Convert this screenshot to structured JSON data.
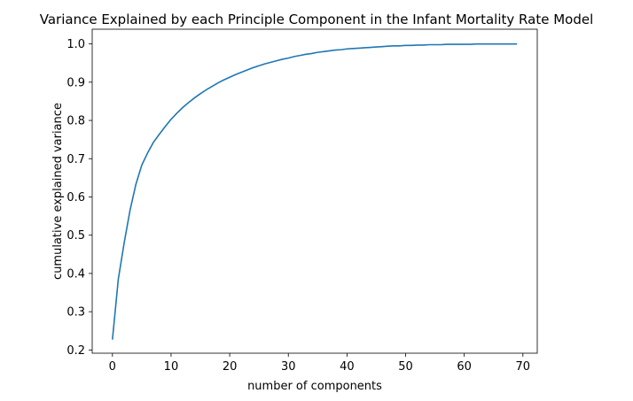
{
  "chart_data": {
    "type": "line",
    "title": "Variance Explained by each Principle Component in the Infant Mortality Rate Model",
    "xlabel": "number of components",
    "ylabel": "cumulative explained variance",
    "xlim": [
      -3.45,
      72.45
    ],
    "ylim": [
      0.1915,
      1.0385
    ],
    "xticks": [
      0,
      10,
      20,
      30,
      40,
      50,
      60,
      70
    ],
    "yticks": [
      0.2,
      0.3,
      0.4,
      0.5,
      0.6,
      0.7,
      0.8,
      0.9,
      1.0
    ],
    "xtick_labels": [
      "0",
      "10",
      "20",
      "30",
      "40",
      "50",
      "60",
      "70"
    ],
    "ytick_labels": [
      "0.2",
      "0.3",
      "0.4",
      "0.5",
      "0.6",
      "0.7",
      "0.8",
      "0.9",
      "1.0"
    ],
    "grid": false,
    "line_color": "#1f77b4",
    "series": [
      {
        "x": [
          0,
          1,
          2,
          3,
          4,
          5,
          6,
          7,
          8,
          9,
          10,
          11,
          12,
          13,
          14,
          15,
          16,
          17,
          18,
          19,
          20,
          21,
          22,
          23,
          24,
          25,
          26,
          27,
          28,
          29,
          30,
          31,
          32,
          33,
          34,
          35,
          36,
          37,
          38,
          39,
          40,
          41,
          42,
          43,
          44,
          45,
          46,
          47,
          48,
          49,
          50,
          51,
          52,
          53,
          54,
          55,
          56,
          57,
          58,
          59,
          60,
          61,
          62,
          63,
          64,
          65,
          66,
          67,
          68,
          69
        ],
        "y": [
          0.227,
          0.385,
          0.48,
          0.565,
          0.633,
          0.683,
          0.715,
          0.743,
          0.764,
          0.784,
          0.803,
          0.819,
          0.834,
          0.847,
          0.859,
          0.87,
          0.88,
          0.889,
          0.898,
          0.906,
          0.913,
          0.92,
          0.926,
          0.932,
          0.938,
          0.943,
          0.948,
          0.952,
          0.956,
          0.96,
          0.963,
          0.967,
          0.97,
          0.973,
          0.975,
          0.978,
          0.98,
          0.982,
          0.984,
          0.985,
          0.987,
          0.988,
          0.989,
          0.99,
          0.991,
          0.992,
          0.993,
          0.994,
          0.995,
          0.995,
          0.996,
          0.996,
          0.997,
          0.997,
          0.998,
          0.998,
          0.998,
          0.999,
          0.999,
          0.999,
          0.999,
          0.999,
          1.0,
          1.0,
          1.0,
          1.0,
          1.0,
          1.0,
          1.0,
          1.0
        ]
      }
    ]
  }
}
